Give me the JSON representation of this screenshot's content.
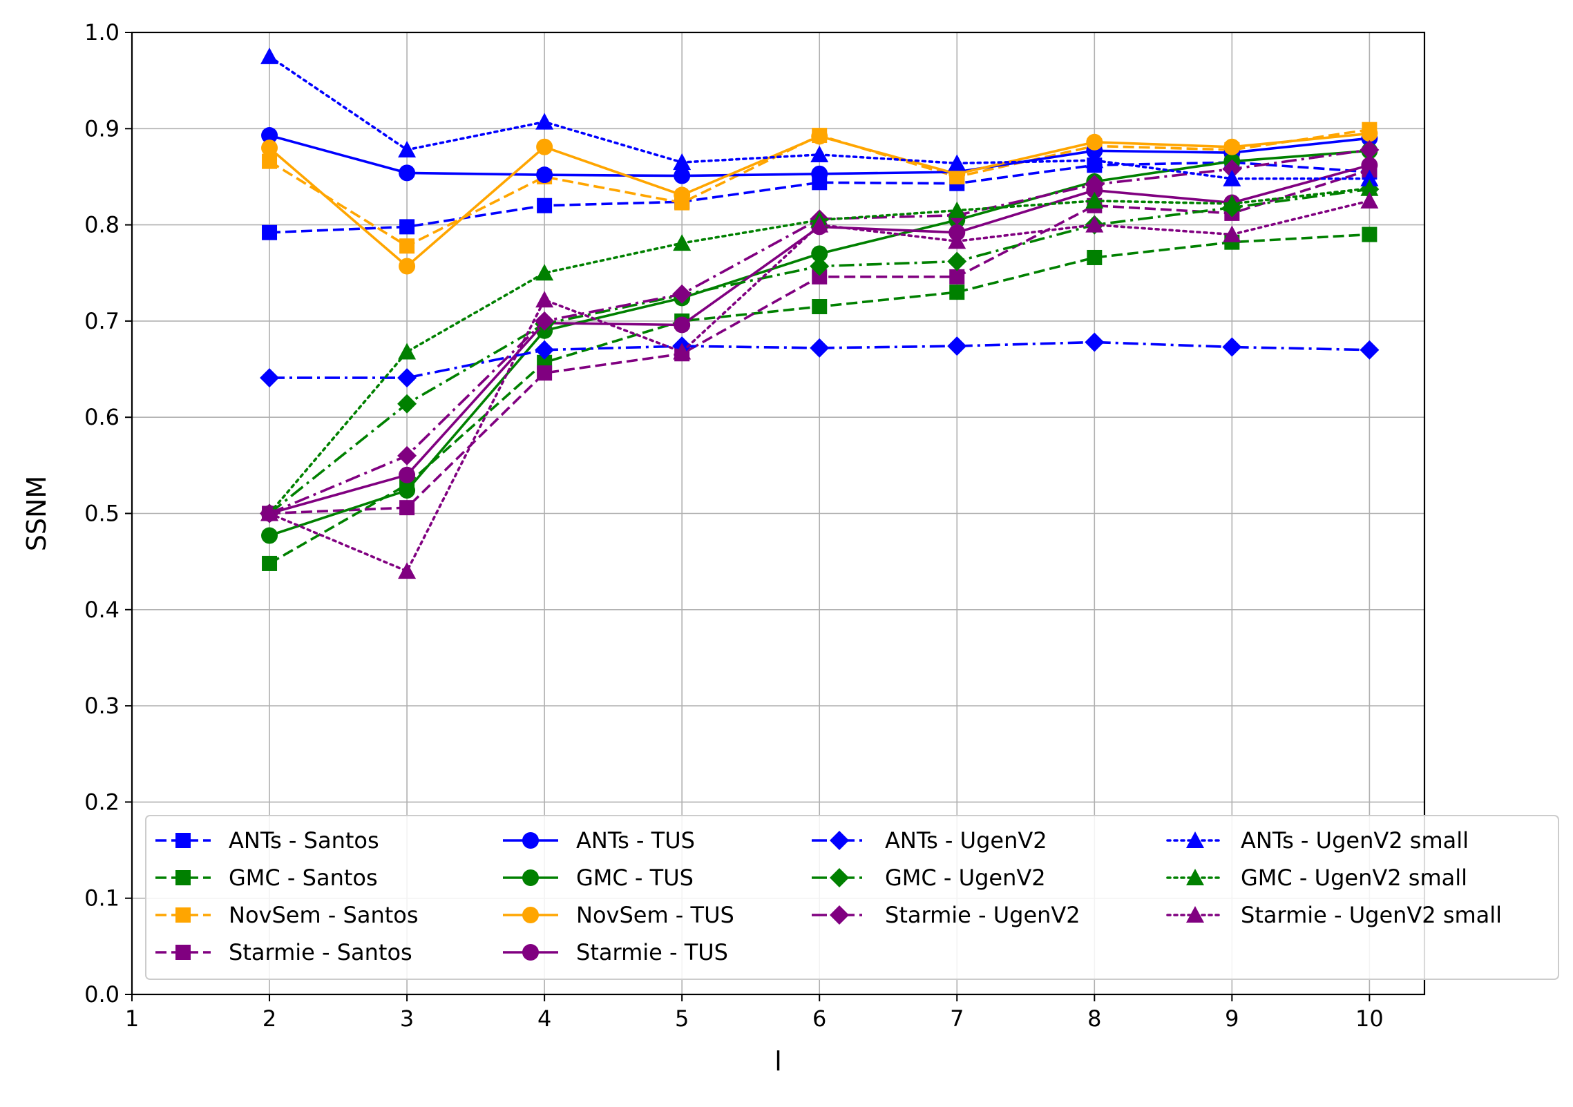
{
  "chart_data": {
    "type": "line",
    "title": "",
    "xlabel": "l",
    "ylabel": "SSNM",
    "xlim": [
      1,
      10.4
    ],
    "ylim": [
      0.0,
      1.0
    ],
    "x_ticks": [
      "1",
      "2",
      "3",
      "4",
      "5",
      "6",
      "7",
      "8",
      "9",
      "10"
    ],
    "y_ticks": [
      "0.0",
      "0.1",
      "0.2",
      "0.3",
      "0.4",
      "0.5",
      "0.6",
      "0.7",
      "0.8",
      "0.9",
      "1.0"
    ],
    "grid": true,
    "legend_position": "lower-right",
    "legend_columns": [
      [
        "ANTs - Santos",
        "GMC - Santos",
        "NovSem - Santos",
        "Starmie - Santos"
      ],
      [
        "ANTs - TUS",
        "GMC - TUS",
        "NovSem - TUS",
        "Starmie - TUS"
      ],
      [
        "ANTs - UgenV2",
        "GMC - UgenV2",
        "Starmie - UgenV2"
      ],
      [
        "ANTs - UgenV2 small",
        "GMC - UgenV2 small",
        "Starmie - UgenV2 small"
      ]
    ],
    "x": [
      2,
      3,
      4,
      5,
      6,
      7,
      8,
      9,
      10
    ],
    "series": [
      {
        "name": "ANTs - Santos",
        "color": "#0000ff",
        "style": "dashed",
        "marker": "square",
        "values": [
          0.792,
          0.798,
          0.82,
          0.824,
          0.844,
          0.843,
          0.862,
          0.865,
          0.855
        ]
      },
      {
        "name": "GMC - Santos",
        "color": "#008000",
        "style": "dashed",
        "marker": "square",
        "values": [
          0.448,
          0.53,
          0.657,
          0.7,
          0.715,
          0.73,
          0.766,
          0.782,
          0.79
        ]
      },
      {
        "name": "NovSem - Santos",
        "color": "#ffa500",
        "style": "dashed",
        "marker": "square",
        "values": [
          0.866,
          0.778,
          0.85,
          0.823,
          0.893,
          0.85,
          0.882,
          0.878,
          0.899
        ]
      },
      {
        "name": "Starmie - Santos",
        "color": "#800080",
        "style": "dashed",
        "marker": "square",
        "values": [
          0.5,
          0.506,
          0.646,
          0.666,
          0.746,
          0.746,
          0.82,
          0.812,
          0.857
        ]
      },
      {
        "name": "ANTs - TUS",
        "color": "#0000ff",
        "style": "solid",
        "marker": "circle",
        "values": [
          0.893,
          0.854,
          0.852,
          0.851,
          0.853,
          0.855,
          0.877,
          0.875,
          0.89
        ]
      },
      {
        "name": "GMC - TUS",
        "color": "#008000",
        "style": "solid",
        "marker": "circle",
        "values": [
          0.477,
          0.524,
          0.69,
          0.724,
          0.77,
          0.805,
          0.845,
          0.866,
          0.877
        ]
      },
      {
        "name": "NovSem - TUS",
        "color": "#ffa500",
        "style": "solid",
        "marker": "circle",
        "values": [
          0.88,
          0.757,
          0.881,
          0.831,
          0.892,
          0.853,
          0.886,
          0.881,
          0.895
        ]
      },
      {
        "name": "Starmie - TUS",
        "color": "#800080",
        "style": "solid",
        "marker": "circle",
        "values": [
          0.5,
          0.54,
          0.698,
          0.696,
          0.798,
          0.792,
          0.836,
          0.823,
          0.862
        ]
      },
      {
        "name": "ANTs - UgenV2",
        "color": "#0000ff",
        "style": "dashdot",
        "marker": "diamond",
        "values": [
          0.641,
          0.641,
          0.67,
          0.674,
          0.672,
          0.674,
          0.678,
          0.673,
          0.67
        ]
      },
      {
        "name": "GMC - UgenV2",
        "color": "#008000",
        "style": "dashdot",
        "marker": "diamond",
        "values": [
          0.5,
          0.614,
          0.697,
          0.727,
          0.757,
          0.762,
          0.8,
          0.818,
          0.837
        ]
      },
      {
        "name": "Starmie - UgenV2",
        "color": "#800080",
        "style": "dashdot",
        "marker": "diamond",
        "values": [
          0.5,
          0.56,
          0.7,
          0.728,
          0.806,
          0.81,
          0.842,
          0.858,
          0.878
        ]
      },
      {
        "name": "ANTs - UgenV2 small",
        "color": "#0000ff",
        "style": "dotted",
        "marker": "triangle",
        "values": [
          0.975,
          0.878,
          0.907,
          0.865,
          0.873,
          0.864,
          0.867,
          0.848,
          0.848
        ]
      },
      {
        "name": "GMC - UgenV2 small",
        "color": "#008000",
        "style": "dotted",
        "marker": "triangle",
        "values": [
          0.5,
          0.668,
          0.75,
          0.781,
          0.805,
          0.815,
          0.825,
          0.822,
          0.838
        ]
      },
      {
        "name": "Starmie - UgenV2 small",
        "color": "#800080",
        "style": "dotted",
        "marker": "triangle",
        "values": [
          0.5,
          0.44,
          0.722,
          0.668,
          0.8,
          0.783,
          0.8,
          0.79,
          0.825
        ]
      }
    ]
  }
}
